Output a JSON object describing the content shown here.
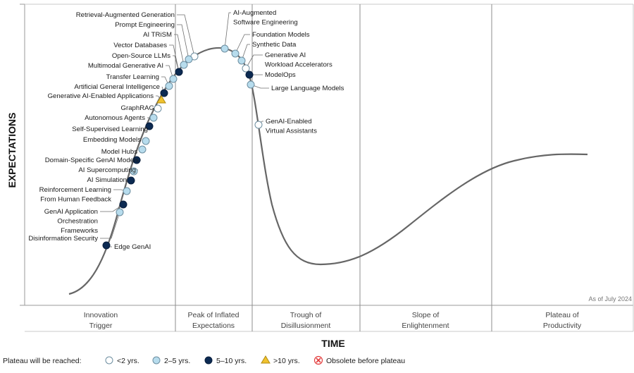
{
  "axes": {
    "y_label": "EXPECTATIONS",
    "x_label": "TIME"
  },
  "note": "As of July 2024",
  "colors": {
    "lt2": "#ffffff",
    "y2to5": "#b7dced",
    "y5to10": "#0c2a52",
    "gt10": "#f0c22e",
    "obsolete": "#e23b3b",
    "curve": "#666666",
    "divider": "#8c8c8c",
    "marker_stroke": "#6d8ea0"
  },
  "phases": [
    {
      "line1": "Innovation",
      "line2": "Trigger"
    },
    {
      "line1": "Peak of Inflated",
      "line2": "Expectations"
    },
    {
      "line1": "Trough of",
      "line2": "Disillusionment"
    },
    {
      "line1": "Slope of",
      "line2": "Enlightenment"
    },
    {
      "line1": "Plateau of",
      "line2": "Productivity"
    }
  ],
  "legend": {
    "title": "Plateau will be reached:",
    "items": [
      {
        "key": "lt2",
        "text": "<2 yrs."
      },
      {
        "key": "y2to5",
        "text": "2–5 yrs."
      },
      {
        "key": "y5to10",
        "text": "5–10 yrs."
      },
      {
        "key": "gt10",
        "text": ">10 yrs."
      },
      {
        "key": "obsolete",
        "text": "Obsolete before plateau"
      }
    ]
  },
  "technologies": [
    {
      "lines": [
        "Retrieval-Augmented Generation"
      ],
      "cat": "lt2"
    },
    {
      "lines": [
        "Prompt Engineering"
      ],
      "cat": "y2to5"
    },
    {
      "lines": [
        "AI TRiSM"
      ],
      "cat": "y2to5"
    },
    {
      "lines": [
        "Vector Databases"
      ],
      "cat": "y2to5"
    },
    {
      "lines": [
        "Open-Source LLMs"
      ],
      "cat": "y5to10"
    },
    {
      "lines": [
        "Multimodal Generative AI"
      ],
      "cat": "y2to5"
    },
    {
      "lines": [
        "Transfer Learning"
      ],
      "cat": "y2to5"
    },
    {
      "lines": [
        "Artificial General Intelligence"
      ],
      "cat": "y5to10"
    },
    {
      "lines": [
        "Generative AI-Enabled Applications"
      ],
      "cat": "gt10"
    },
    {
      "lines": [
        "GraphRAG"
      ],
      "cat": "lt2"
    },
    {
      "lines": [
        "Autonomous Agents"
      ],
      "cat": "y2to5"
    },
    {
      "lines": [
        "Self-Supervised Learning"
      ],
      "cat": "y5to10"
    },
    {
      "lines": [
        "Embedding Models"
      ],
      "cat": "y2to5"
    },
    {
      "lines": [
        "Model Hubs"
      ],
      "cat": "y2to5"
    },
    {
      "lines": [
        "Domain-Specific GenAI Models"
      ],
      "cat": "y5to10"
    },
    {
      "lines": [
        "AI Supercomputing"
      ],
      "cat": "y2to5"
    },
    {
      "lines": [
        "AI Simulation"
      ],
      "cat": "y5to10"
    },
    {
      "lines": [
        "Reinforcement Learning",
        "From Human Feedback"
      ],
      "cat": "y2to5"
    },
    {
      "lines": [
        "GenAI Application",
        "Orchestration",
        "Frameworks"
      ],
      "cat": "y5to10"
    },
    {
      "lines": [
        "Disinformation Security"
      ],
      "cat": "y2to5"
    },
    {
      "lines": [
        "Edge GenAI"
      ],
      "cat": "y5to10"
    },
    {
      "lines": [
        "AI-Augmented",
        "Software Engineering"
      ],
      "cat": "y2to5"
    },
    {
      "lines": [
        "Foundation Models"
      ],
      "cat": "y2to5"
    },
    {
      "lines": [
        "Synthetic Data"
      ],
      "cat": "y2to5"
    },
    {
      "lines": [
        "Generative AI",
        "Workload Accelerators"
      ],
      "cat": "lt2"
    },
    {
      "lines": [
        "ModelOps"
      ],
      "cat": "y5to10"
    },
    {
      "lines": [
        "Large Language Models"
      ],
      "cat": "y2to5"
    },
    {
      "lines": [
        "GenAI-Enabled",
        "Virtual Assistants"
      ],
      "cat": "lt2"
    }
  ]
}
